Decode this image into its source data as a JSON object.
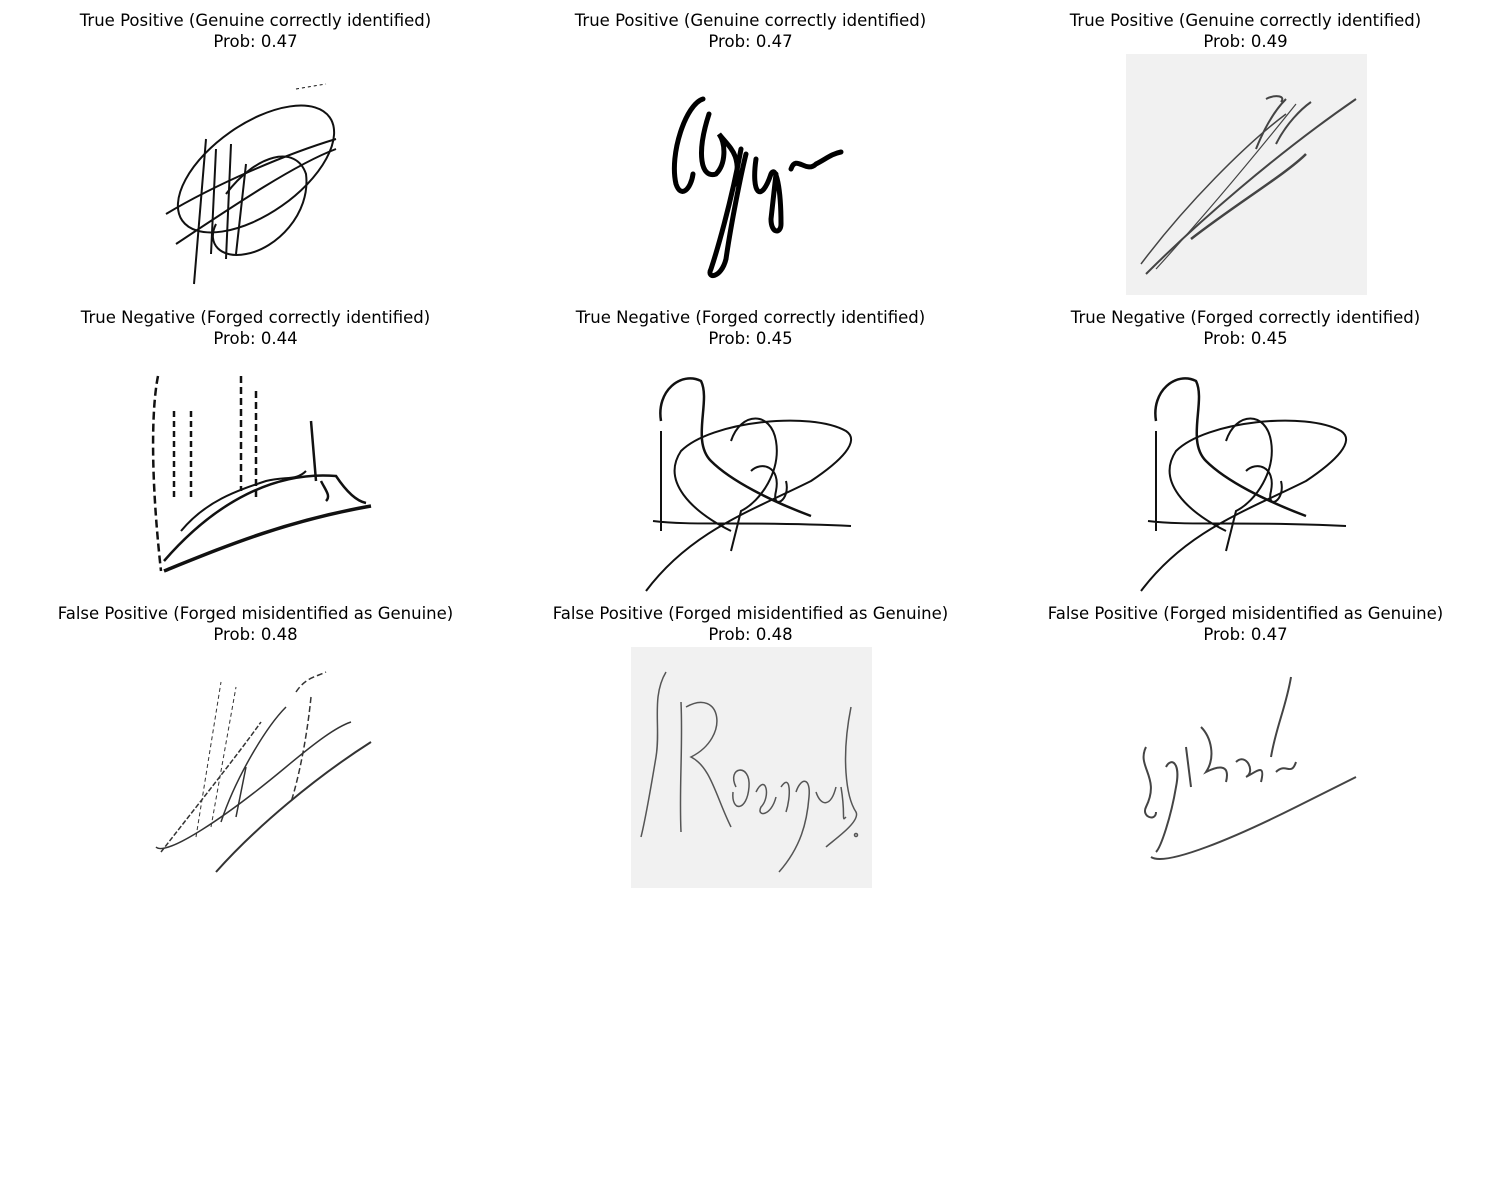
{
  "panels": [
    {
      "line1": "True Positive (Genuine correctly identified)",
      "line2": "Prob: 0.47",
      "background": "#ffffff"
    },
    {
      "line1": "True Positive (Genuine correctly identified)",
      "line2": "Prob: 0.47",
      "background": "#ffffff"
    },
    {
      "line1": "True Positive (Genuine correctly identified)",
      "line2": "Prob: 0.49",
      "background": "#f1f1f1"
    },
    {
      "line1": "True Negative (Forged correctly identified)",
      "line2": "Prob: 0.44",
      "background": "#ffffff"
    },
    {
      "line1": "True Negative (Forged correctly identified)",
      "line2": "Prob: 0.45",
      "background": "#ffffff"
    },
    {
      "line1": "True Negative (Forged correctly identified)",
      "line2": "Prob: 0.45",
      "background": "#ffffff"
    },
    {
      "line1": "False Positive (Forged misidentified as Genuine)",
      "line2": "Prob: 0.48",
      "background": "#ffffff"
    },
    {
      "line1": "False Positive (Forged misidentified as Genuine)",
      "line2": "Prob: 0.48",
      "background": "#f1f1f1"
    },
    {
      "line1": "False Positive (Forged misidentified as Genuine)",
      "line2": "Prob: 0.47",
      "background": "#ffffff"
    }
  ]
}
